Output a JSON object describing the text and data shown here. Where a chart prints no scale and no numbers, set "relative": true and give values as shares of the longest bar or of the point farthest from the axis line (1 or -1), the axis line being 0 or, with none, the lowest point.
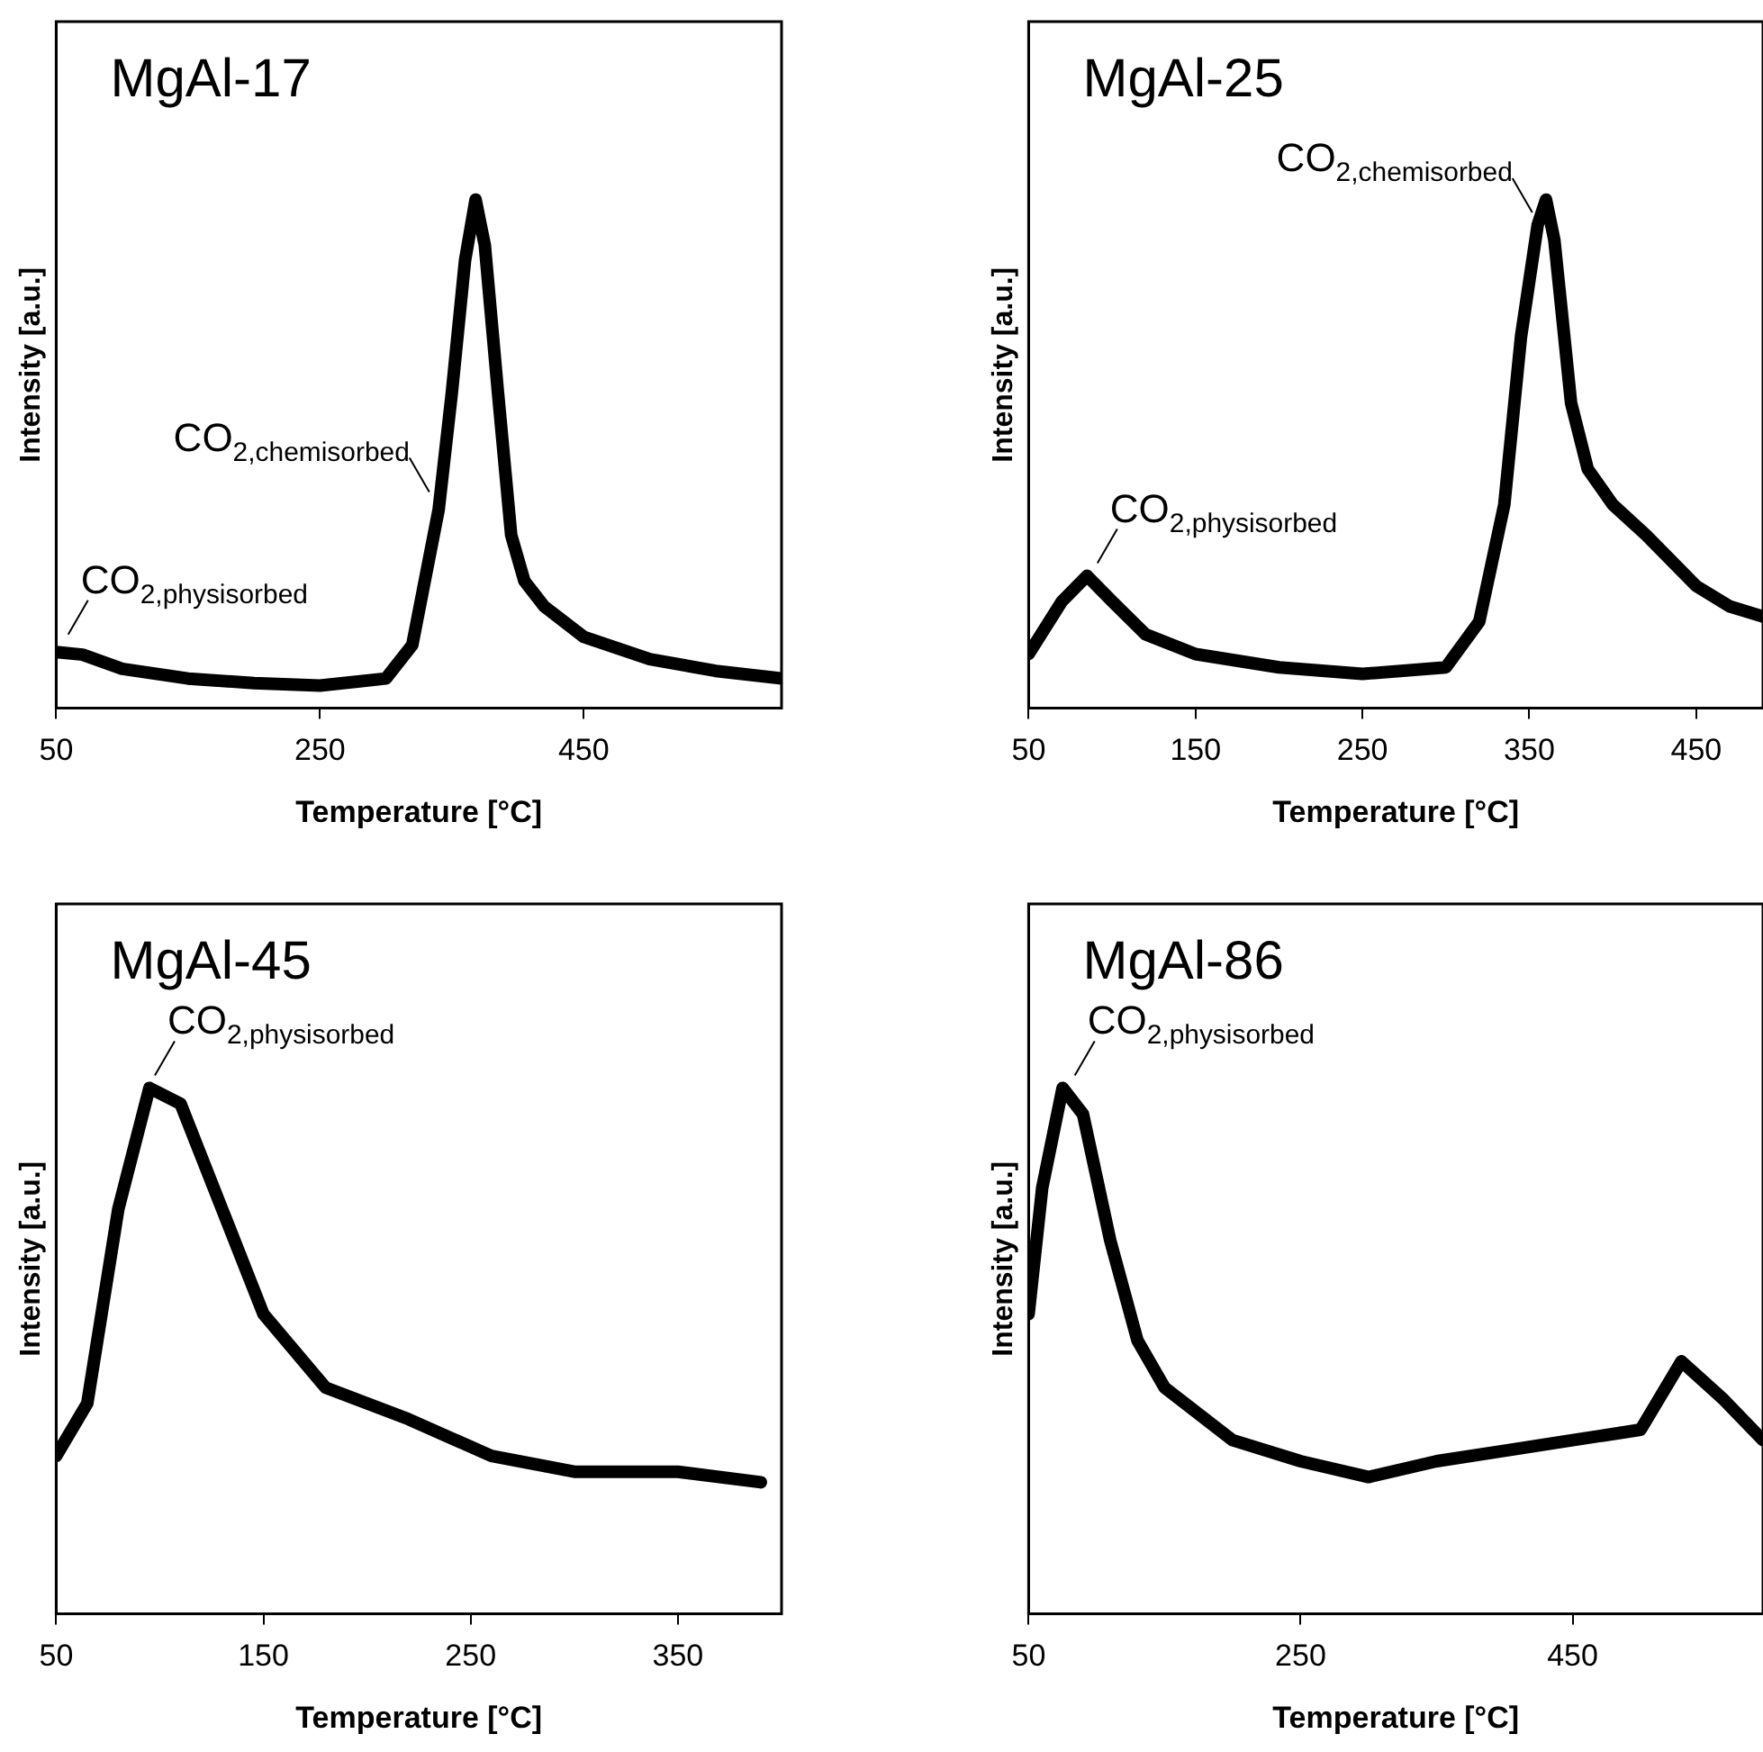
{
  "chart_data": [
    {
      "type": "line",
      "title": "MgAl-17",
      "xlabel": "Temperature [°C]",
      "ylabel": "Intensity [a.u.]",
      "relative": true,
      "marker": "none",
      "xlim": [
        50,
        600
      ],
      "xticks": [
        50,
        250,
        450
      ],
      "x": [
        50,
        70,
        100,
        150,
        200,
        250,
        300,
        320,
        340,
        350,
        360,
        368,
        375,
        385,
        395,
        405,
        420,
        450,
        500,
        550,
        600
      ],
      "series": [
        {
          "color": "#000000",
          "values": [
            0.11,
            0.105,
            0.077,
            0.058,
            0.049,
            0.044,
            0.058,
            0.124,
            0.39,
            0.62,
            0.88,
            1.0,
            0.91,
            0.62,
            0.34,
            0.25,
            0.2,
            0.14,
            0.096,
            0.073,
            0.058
          ]
        }
      ],
      "annotations": [
        {
          "text": "CO$_{2,chemisorbed}$",
          "x": 337,
          "y": 0.4
        },
        {
          "text": "CO$_{2,physisorbed}$",
          "x": 55,
          "y": 0.12
        }
      ]
    },
    {
      "type": "line",
      "title": "MgAl-25",
      "xlabel": "Temperature [°C]",
      "ylabel": "Intensity [a.u.]",
      "relative": true,
      "marker": "none",
      "xlim": [
        50,
        490
      ],
      "xticks": [
        50,
        150,
        250,
        350,
        450
      ],
      "x": [
        50,
        70,
        85,
        100,
        120,
        150,
        200,
        250,
        300,
        320,
        335,
        345,
        355,
        360,
        365,
        375,
        385,
        400,
        420,
        450,
        470,
        490
      ],
      "series": [
        {
          "color": "#000000",
          "values": [
            0.106,
            0.21,
            0.26,
            0.21,
            0.145,
            0.106,
            0.08,
            0.067,
            0.08,
            0.17,
            0.4,
            0.73,
            0.95,
            1.0,
            0.92,
            0.6,
            0.47,
            0.4,
            0.34,
            0.24,
            0.2,
            0.18
          ]
        }
      ],
      "annotations": [
        {
          "text": "CO$_{2,chemisorbed}$",
          "x": 355,
          "y": 0.95
        },
        {
          "text": "CO$_{2,physisorbed}$",
          "x": 88,
          "y": 0.26
        }
      ]
    },
    {
      "type": "line",
      "title": "MgAl-45",
      "xlabel": "Temperature [°C]",
      "ylabel": "Intensity [a.u.]",
      "relative": true,
      "marker": "none",
      "xlim": [
        50,
        400
      ],
      "xticks": [
        50,
        150,
        250,
        350
      ],
      "x": [
        50,
        65,
        80,
        95,
        110,
        130,
        150,
        180,
        220,
        260,
        300,
        350,
        390
      ],
      "series": [
        {
          "color": "#000000",
          "values": [
            0.3,
            0.4,
            0.77,
            1.0,
            0.97,
            0.77,
            0.57,
            0.43,
            0.37,
            0.3,
            0.27,
            0.27,
            0.25
          ]
        }
      ],
      "annotations": [
        {
          "text": "CO$_{2,physisorbed}$",
          "x": 95,
          "y": 1.0
        }
      ]
    },
    {
      "type": "line",
      "title": "MgAl-86",
      "xlabel": "Temperature [°C]",
      "ylabel": "Intensity [a.u.]",
      "relative": true,
      "marker": "none",
      "xlim": [
        50,
        590
      ],
      "xticks": [
        50,
        250,
        450
      ],
      "x": [
        50,
        60,
        75,
        90,
        110,
        130,
        150,
        200,
        250,
        300,
        350,
        400,
        450,
        500,
        530,
        560,
        590
      ],
      "series": [
        {
          "color": "#000000",
          "values": [
            0.57,
            0.81,
            1.0,
            0.95,
            0.71,
            0.52,
            0.43,
            0.33,
            0.29,
            0.26,
            0.29,
            0.31,
            0.33,
            0.35,
            0.48,
            0.41,
            0.33
          ]
        }
      ],
      "annotations": [
        {
          "text": "CO$_{2,physisorbed}$",
          "x": 80,
          "y": 1.0
        }
      ]
    }
  ]
}
